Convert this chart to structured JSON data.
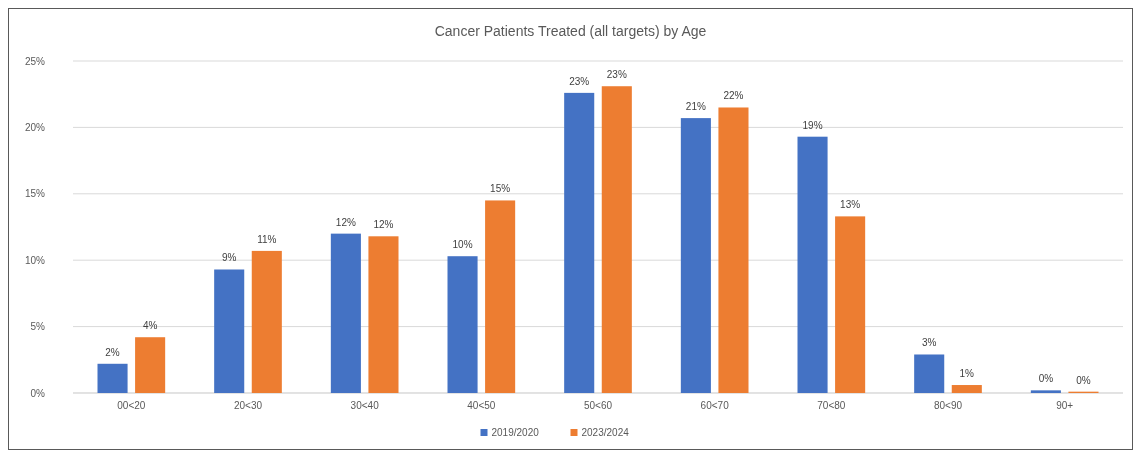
{
  "chart_data": {
    "type": "bar",
    "title": "Cancer Patients Treated (all targets) by Age",
    "categories": [
      "00<20",
      "20<30",
      "30<40",
      "40<50",
      "50<60",
      "60<70",
      "70<80",
      "80<90",
      "90+"
    ],
    "series": [
      {
        "name": "2019/2020",
        "color": "#4472c4",
        "values": [
          2.2,
          9.3,
          12.0,
          10.3,
          22.6,
          20.7,
          19.3,
          2.9,
          0.2
        ],
        "value_labels": [
          "2%",
          "9%",
          "12%",
          "10%",
          "23%",
          "21%",
          "19%",
          "3%",
          "0%"
        ]
      },
      {
        "name": "2023/2024",
        "color": "#ed7d31",
        "values": [
          4.2,
          10.7,
          11.8,
          14.5,
          23.1,
          21.5,
          13.3,
          0.6,
          0.1
        ],
        "value_labels": [
          "4%",
          "11%",
          "12%",
          "15%",
          "23%",
          "22%",
          "13%",
          "1%",
          "0%"
        ]
      }
    ],
    "ylim": [
      0,
      25
    ],
    "yticks": [
      {
        "value": 0,
        "label": "0%"
      },
      {
        "value": 5,
        "label": "5%"
      },
      {
        "value": 10,
        "label": "10%"
      },
      {
        "value": 15,
        "label": "15%"
      },
      {
        "value": 20,
        "label": "20%"
      },
      {
        "value": 25,
        "label": "25%"
      }
    ],
    "grid": "y",
    "legend": "bottom"
  }
}
